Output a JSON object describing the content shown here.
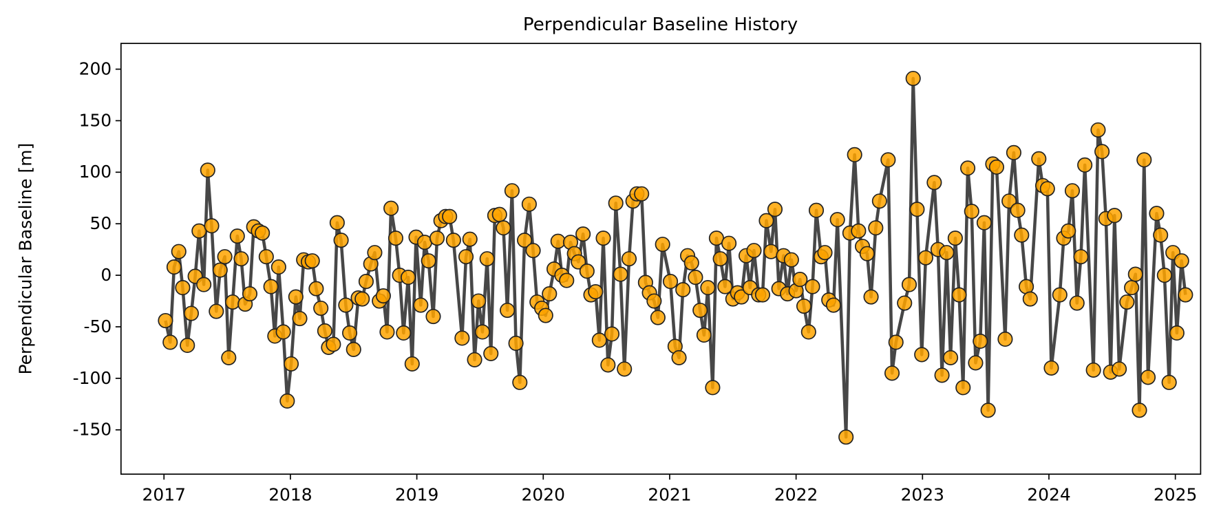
{
  "chart_data": {
    "type": "line",
    "title": "Perpendicular Baseline History",
    "y_label": "Perpendicular Baseline [m]",
    "xlim": [
      2016.66,
      2025.2
    ],
    "xticks": [
      2017,
      2018,
      2019,
      2020,
      2021,
      2022,
      2023,
      2024,
      2025
    ],
    "ylim": [
      -193,
      225
    ],
    "yticks": [
      -150,
      -100,
      -50,
      0,
      50,
      100,
      150,
      200
    ],
    "series": [
      {
        "color": "#ffa500",
        "line_color": "#333333",
        "x": [
          2017.012,
          2017.049,
          2017.08,
          2017.117,
          2017.148,
          2017.185,
          2017.216,
          2017.247,
          2017.278,
          2017.315,
          2017.346,
          2017.377,
          2017.414,
          2017.444,
          2017.481,
          2017.512,
          2017.543,
          2017.58,
          2017.611,
          2017.642,
          2017.679,
          2017.71,
          2017.747,
          2017.778,
          2017.809,
          2017.846,
          2017.877,
          2017.907,
          2017.944,
          2017.975,
          2018.006,
          2018.043,
          2018.074,
          2018.105,
          2018.142,
          2018.173,
          2018.204,
          2018.241,
          2018.272,
          2018.302,
          2018.34,
          2018.37,
          2018.401,
          2018.438,
          2018.469,
          2018.5,
          2018.537,
          2018.568,
          2018.599,
          2018.636,
          2018.667,
          2018.704,
          2018.735,
          2018.765,
          2018.796,
          2018.833,
          2018.864,
          2018.895,
          2018.932,
          2018.963,
          2018.994,
          2019.031,
          2019.062,
          2019.093,
          2019.13,
          2019.16,
          2019.191,
          2019.228,
          2019.259,
          2019.29,
          2019.358,
          2019.389,
          2019.42,
          2019.457,
          2019.488,
          2019.519,
          2019.556,
          2019.586,
          2019.617,
          2019.654,
          2019.685,
          2019.716,
          2019.753,
          2019.784,
          2019.815,
          2019.852,
          2019.889,
          2019.92,
          2019.951,
          2019.988,
          2020.019,
          2020.049,
          2020.086,
          2020.117,
          2020.148,
          2020.185,
          2020.216,
          2020.247,
          2020.278,
          2020.315,
          2020.346,
          2020.377,
          2020.414,
          2020.444,
          2020.475,
          2020.512,
          2020.543,
          2020.574,
          2020.611,
          2020.642,
          2020.679,
          2020.71,
          2020.741,
          2020.778,
          2020.809,
          2020.84,
          2020.877,
          2020.907,
          2020.944,
          2021.006,
          2021.043,
          2021.074,
          2021.105,
          2021.142,
          2021.173,
          2021.204,
          2021.241,
          2021.272,
          2021.302,
          2021.34,
          2021.37,
          2021.401,
          2021.438,
          2021.469,
          2021.5,
          2021.537,
          2021.568,
          2021.605,
          2021.636,
          2021.667,
          2021.704,
          2021.735,
          2021.765,
          2021.802,
          2021.833,
          2021.864,
          2021.901,
          2021.932,
          2021.963,
          2022.0,
          2022.031,
          2022.062,
          2022.099,
          2022.13,
          2022.16,
          2022.198,
          2022.228,
          2022.259,
          2022.296,
          2022.327,
          2022.395,
          2022.426,
          2022.463,
          2022.494,
          2022.525,
          2022.562,
          2022.593,
          2022.63,
          2022.66,
          2022.728,
          2022.759,
          2022.79,
          2022.858,
          2022.895,
          2022.926,
          2022.957,
          2022.994,
          2023.025,
          2023.093,
          2023.123,
          2023.154,
          2023.191,
          2023.222,
          2023.259,
          2023.29,
          2023.321,
          2023.358,
          2023.389,
          2023.42,
          2023.457,
          2023.488,
          2023.519,
          2023.556,
          2023.586,
          2023.654,
          2023.685,
          2023.722,
          2023.753,
          2023.784,
          2023.821,
          2023.852,
          2023.92,
          2023.951,
          2023.988,
          2024.019,
          2024.086,
          2024.117,
          2024.154,
          2024.185,
          2024.222,
          2024.253,
          2024.284,
          2024.352,
          2024.389,
          2024.42,
          2024.451,
          2024.488,
          2024.519,
          2024.556,
          2024.617,
          2024.654,
          2024.685,
          2024.716,
          2024.753,
          2024.784,
          2024.852,
          2024.883,
          2024.914,
          2024.951,
          2024.981,
          2025.012,
          2025.049,
          2025.08
        ],
        "values": [
          -44,
          -65,
          8,
          23,
          -12,
          -68,
          -37,
          -1,
          43,
          -9,
          102,
          48,
          -35,
          5,
          18,
          -80,
          -26,
          38,
          16,
          -28,
          -18,
          47,
          43,
          41,
          18,
          -11,
          -59,
          8,
          -55,
          -122,
          -86,
          -21,
          -42,
          15,
          13,
          14,
          -13,
          -32,
          -54,
          -70,
          -67,
          51,
          34,
          -29,
          -56,
          -72,
          -22,
          -23,
          -6,
          11,
          22,
          -25,
          -20,
          -55,
          65,
          36,
          0,
          -56,
          -2,
          -86,
          37,
          -29,
          32,
          14,
          -40,
          36,
          53,
          57,
          57,
          34,
          -61,
          18,
          35,
          -82,
          -25,
          -55,
          16,
          -76,
          58,
          59,
          46,
          -34,
          82,
          -66,
          -104,
          34,
          69,
          24,
          -26,
          -32,
          -39,
          -18,
          6,
          33,
          0,
          -5,
          32,
          21,
          13,
          40,
          4,
          -19,
          -16,
          -63,
          36,
          -87,
          -57,
          70,
          1,
          -91,
          16,
          72,
          79,
          79,
          -7,
          -17,
          -25,
          -41,
          30,
          -6,
          -69,
          -80,
          -14,
          19,
          12,
          -2,
          -34,
          -58,
          -12,
          -109,
          36,
          16,
          -11,
          31,
          -23,
          -17,
          -21,
          19,
          -12,
          24,
          -19,
          -19,
          53,
          23,
          64,
          -13,
          19,
          -18,
          15,
          -15,
          -4,
          -30,
          -55,
          -11,
          63,
          18,
          22,
          -24,
          -29,
          54,
          -157,
          41,
          117,
          43,
          28,
          21,
          -21,
          46,
          72,
          112,
          -95,
          -65,
          -27,
          -9,
          191,
          64,
          -77,
          17,
          90,
          25,
          -97,
          22,
          -80,
          36,
          -19,
          -109,
          104,
          62,
          -85,
          -64,
          51,
          -131,
          108,
          105,
          -62,
          72,
          119,
          63,
          39,
          -11,
          -23,
          113,
          87,
          84,
          -90,
          -19,
          36,
          43,
          82,
          -27,
          18,
          107,
          -92,
          141,
          120,
          55,
          -94,
          58,
          -91,
          -26,
          -12,
          1,
          -131,
          112,
          -99,
          60,
          39,
          0,
          -104,
          22,
          -56,
          14,
          -19
        ]
      }
    ]
  }
}
